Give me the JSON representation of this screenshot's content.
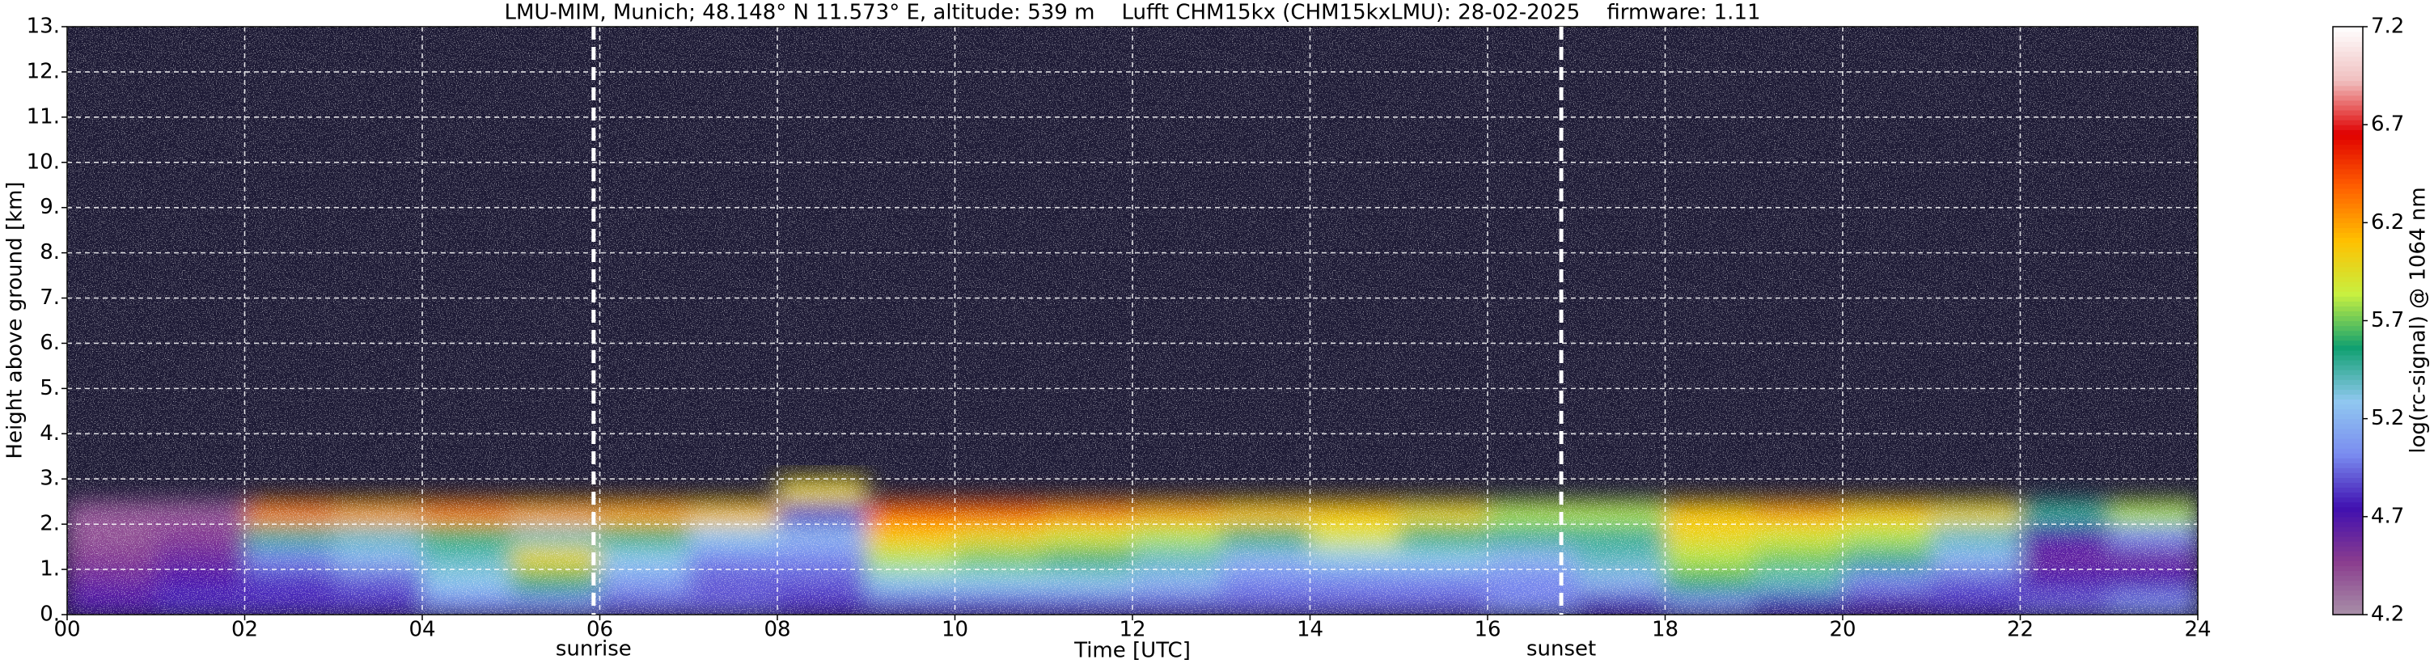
{
  "chart_data": {
    "type": "heatmap",
    "title": "LMU-MIM, Munich; 48.148° N 11.573° E, altitude: 539 m    Lufft CHM15kx (CHM15kxLMU): 28-02-2025    firmware: 1.11",
    "xlabel": "Time [UTC]",
    "ylabel": "Height above ground [km]",
    "colorbar_label": "log(rc-signal) @ 1064 nm",
    "xlim": [
      0,
      24
    ],
    "ylim": [
      0,
      13
    ],
    "clim": [
      4.2,
      7.2
    ],
    "xticks": [
      {
        "value": 0,
        "label": "00"
      },
      {
        "value": 2,
        "label": "02"
      },
      {
        "value": 4,
        "label": "04"
      },
      {
        "value": 6,
        "label": "06"
      },
      {
        "value": 8,
        "label": "08"
      },
      10,
      12,
      14,
      16,
      18,
      20,
      22,
      24
    ],
    "yticks": [
      {
        "value": 0,
        "label": "0."
      },
      {
        "value": 1,
        "label": "1."
      },
      {
        "value": 2,
        "label": "2."
      },
      {
        "value": 3,
        "label": "3."
      },
      {
        "value": 4,
        "label": "4."
      },
      {
        "value": 5,
        "label": "5."
      },
      {
        "value": 6,
        "label": "6."
      },
      {
        "value": 7,
        "label": "7."
      },
      {
        "value": 8,
        "label": "8."
      },
      {
        "value": 9,
        "label": "9."
      },
      {
        "value": 10,
        "label": "10."
      },
      {
        "value": 11,
        "label": "11."
      },
      {
        "value": 12,
        "label": "12."
      },
      {
        "value": 13,
        "label": "13."
      }
    ],
    "cticks": [
      4.2,
      4.7,
      5.2,
      5.7,
      6.2,
      6.7,
      7.2
    ],
    "colors": [
      "#a890a8",
      "#8a3c8e",
      "#4010b0",
      "#7a8cf0",
      "#90c8f0",
      "#10a070",
      "#c8f040",
      "#ffc000",
      "#ff6000",
      "#e00000",
      "#f0c0c0",
      "#ffffff"
    ],
    "grid": true,
    "x_edges": [
      0,
      1,
      2,
      3,
      4,
      5,
      6,
      7,
      8,
      9,
      10,
      11,
      12,
      13,
      14,
      15,
      16,
      17,
      18,
      19,
      20,
      21,
      22,
      23,
      24
    ],
    "y_edges": [
      0,
      0.5,
      1,
      1.5,
      2,
      2.5,
      3,
      13
    ],
    "z": [
      [
        4.7,
        4.8,
        4.8,
        4.8,
        5.0,
        5.0,
        4.9,
        4.9,
        4.8,
        4.9,
        4.9,
        4.9,
        4.9,
        4.9,
        4.9,
        4.9,
        5.0,
        4.8,
        5.0,
        4.8,
        4.7,
        4.8,
        4.9,
        5.0
      ],
      [
        4.6,
        4.7,
        4.8,
        4.9,
        5.3,
        5.6,
        5.1,
        4.9,
        4.9,
        5.3,
        5.3,
        5.3,
        5.2,
        5.0,
        5.0,
        5.0,
        5.0,
        5.2,
        5.6,
        5.4,
        5.0,
        4.9,
        4.7,
        4.7
      ],
      [
        4.5,
        4.6,
        5.0,
        5.2,
        5.4,
        6.0,
        5.3,
        5.0,
        5.0,
        5.8,
        5.7,
        5.6,
        5.4,
        5.2,
        5.3,
        5.3,
        5.2,
        5.4,
        5.8,
        5.7,
        5.5,
        5.2,
        4.6,
        4.6
      ],
      [
        4.4,
        4.5,
        5.5,
        5.4,
        5.6,
        5.4,
        5.6,
        5.3,
        5.2,
        6.1,
        6.0,
        5.9,
        5.8,
        5.6,
        5.9,
        5.6,
        5.5,
        5.5,
        6.0,
        5.9,
        5.8,
        5.4,
        4.7,
        5.0
      ],
      [
        4.4,
        4.4,
        6.3,
        6.2,
        6.3,
        6.2,
        6.2,
        6.1,
        4.8,
        6.4,
        6.4,
        6.3,
        6.2,
        6.1,
        6.1,
        6.0,
        5.8,
        5.8,
        6.1,
        6.2,
        6.1,
        6.0,
        5.5,
        5.8
      ],
      [
        null,
        null,
        null,
        null,
        null,
        null,
        null,
        null,
        6.0,
        null,
        null,
        null,
        null,
        null,
        null,
        null,
        null,
        null,
        null,
        null,
        null,
        null,
        null,
        null
      ],
      [
        null,
        null,
        null,
        null,
        null,
        null,
        null,
        null,
        null,
        null,
        null,
        null,
        null,
        null,
        null,
        null,
        null,
        null,
        null,
        null,
        null,
        null,
        null,
        null
      ]
    ],
    "annotations": [
      {
        "text": "sunrise",
        "x": 5.93
      },
      {
        "text": "sunset",
        "x": 16.83
      }
    ]
  }
}
